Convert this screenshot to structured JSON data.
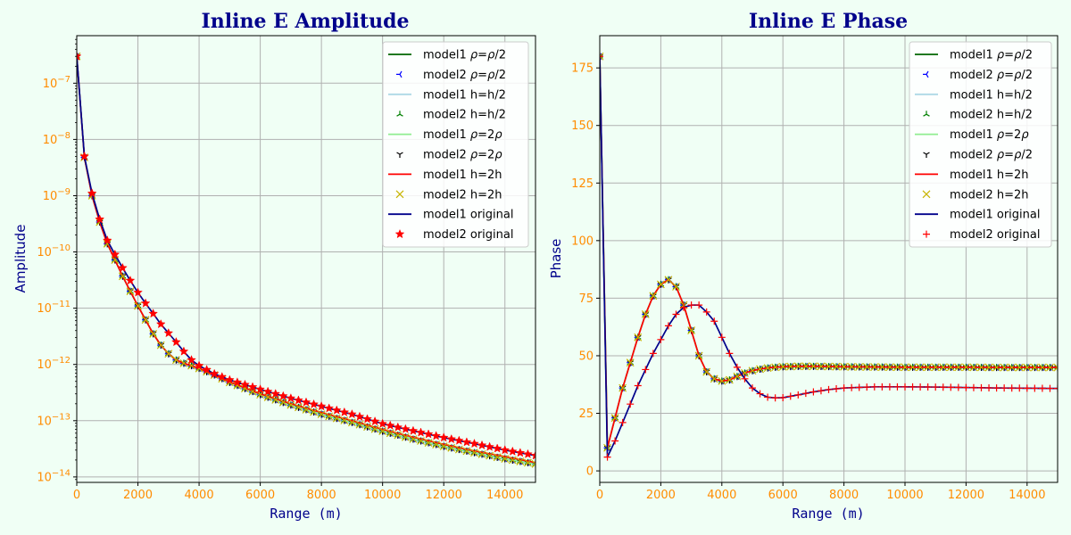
{
  "chart_data": [
    {
      "type": "line",
      "title": "Inline E Amplitude",
      "xlabel": "Range (m)",
      "ylabel": "Amplitude",
      "xlim": [
        0,
        15000
      ],
      "ylim": [
        8e-15,
        7e-07
      ],
      "yscale": "log",
      "x_ticks": [
        "0",
        "2000",
        "4000",
        "6000",
        "8000",
        "10000",
        "12000",
        "14000"
      ],
      "y_ticks": [
        "10^-14",
        "10^-13",
        "10^-12",
        "10^-11",
        "10^-10",
        "10^-9",
        "10^-8",
        "10^-7"
      ],
      "grid": true,
      "legend_position": "top-right",
      "series": [
        {
          "name": "model1 ρ=ρ/2",
          "style": "line",
          "color": "#006400",
          "group": "half_rho"
        },
        {
          "name": "model2 ρ=ρ/2",
          "style": "marker",
          "marker": "tri_left",
          "color": "#0000ff",
          "group": "half_rho"
        },
        {
          "name": "model1 h=h/2",
          "style": "line",
          "color": "#add8e6",
          "group": "half_rho"
        },
        {
          "name": "model2 h=h/2",
          "style": "marker",
          "marker": "tri_up",
          "color": "#008000",
          "group": "half_rho"
        },
        {
          "name": "model1 ρ=2ρ",
          "style": "line",
          "color": "#90ee90",
          "group": "half_rho"
        },
        {
          "name": "model2 ρ=2ρ",
          "style": "marker",
          "marker": "tri_down",
          "color": "#000000",
          "group": "half_rho"
        },
        {
          "name": "model1 h=2h",
          "style": "line",
          "color": "#ff0000",
          "group": "double_h"
        },
        {
          "name": "model2 h=2h",
          "style": "marker",
          "marker": "x",
          "color": "#c8b400",
          "group": "half_rho"
        },
        {
          "name": "model1 original",
          "style": "line",
          "color": "#00008b",
          "group": "original"
        },
        {
          "name": "model2 original",
          "style": "marker",
          "marker": "star",
          "color": "#ff0000",
          "group": "original"
        }
      ],
      "curves": {
        "original": {
          "x": [
            0,
            250,
            500,
            750,
            1000,
            1250,
            1500,
            1750,
            2000,
            2250,
            2500,
            2750,
            3000,
            3250,
            3500,
            3750,
            4000,
            4500,
            5000,
            6000,
            7000,
            8000,
            9000,
            10000,
            11000,
            12000,
            13000,
            14000,
            15000
          ],
          "y": [
            3e-07,
            5e-09,
            1.1e-09,
            3.8e-10,
            1.6e-10,
            9e-11,
            5.2e-11,
            3.1e-11,
            1.9e-11,
            1.22e-11,
            8e-12,
            5.2e-12,
            3.6e-12,
            2.5e-12,
            1.7e-12,
            1.2e-12,
            9.5e-13,
            6.8e-13,
            5.3e-13,
            3.6e-13,
            2.5e-13,
            1.8e-13,
            1.3e-13,
            8.8e-14,
            6.6e-14,
            5e-14,
            3.9e-14,
            3e-14,
            2.4e-14
          ]
        },
        "half_rho": {
          "x": [
            0,
            250,
            500,
            750,
            1000,
            1250,
            1500,
            1750,
            2000,
            2250,
            2500,
            2750,
            3000,
            3250,
            3500,
            3750,
            4000,
            4500,
            5000,
            6000,
            7000,
            8000,
            9000,
            10000,
            11000,
            12000,
            13000,
            14000,
            15000
          ],
          "y": [
            3e-07,
            4.8e-09,
            1e-09,
            3.4e-10,
            1.4e-10,
            7.2e-11,
            3.7e-11,
            2e-11,
            1.1e-11,
            6.2e-12,
            3.5e-12,
            2.2e-12,
            1.55e-12,
            1.2e-12,
            1.05e-12,
            9.5e-13,
            8.5e-13,
            6.5e-13,
            4.8e-13,
            2.9e-13,
            1.9e-13,
            1.3e-13,
            9.3e-14,
            6.5e-14,
            4.7e-14,
            3.5e-14,
            2.7e-14,
            2.1e-14,
            1.7e-14
          ]
        },
        "double_h": {
          "x": [
            0,
            250,
            500,
            750,
            1000,
            1250,
            1500,
            1750,
            2000,
            2250,
            2500,
            2750,
            3000,
            3250,
            3500,
            3750,
            4000,
            4500,
            5000,
            6000,
            7000,
            8000,
            9000,
            10000,
            11000,
            12000,
            13000,
            14000,
            15000
          ],
          "y": [
            3e-07,
            4.8e-09,
            1e-09,
            3.4e-10,
            1.4e-10,
            7.2e-11,
            3.7e-11,
            2e-11,
            1.1e-11,
            6.2e-12,
            3.5e-12,
            2.2e-12,
            1.55e-12,
            1.2e-12,
            1.05e-12,
            9.5e-13,
            8.5e-13,
            6.5e-13,
            4.9e-13,
            3e-13,
            2e-13,
            1.4e-13,
            1e-13,
            7e-14,
            5.1e-14,
            3.8e-14,
            2.9e-14,
            2.3e-14,
            1.8e-14
          ]
        }
      }
    },
    {
      "type": "line",
      "title": "Inline E Phase",
      "xlabel": "Range (m)",
      "ylabel": "Phase",
      "xlim": [
        0,
        15000
      ],
      "ylim": [
        -5,
        189
      ],
      "x_ticks": [
        "0",
        "2000",
        "4000",
        "6000",
        "8000",
        "10000",
        "12000",
        "14000"
      ],
      "y_ticks": [
        "0",
        "25",
        "50",
        "75",
        "100",
        "125",
        "150",
        "175"
      ],
      "grid": true,
      "legend_position": "top-right",
      "series": [
        {
          "name": "model1 ρ=ρ/2",
          "style": "line",
          "color": "#006400",
          "group": "shifted"
        },
        {
          "name": "model2 ρ=ρ/2",
          "style": "marker",
          "marker": "tri_left",
          "color": "#0000ff",
          "group": "shifted"
        },
        {
          "name": "model1 h=h/2",
          "style": "line",
          "color": "#add8e6",
          "group": "shifted"
        },
        {
          "name": "model2 h=h/2",
          "style": "marker",
          "marker": "tri_up",
          "color": "#008000",
          "group": "shifted"
        },
        {
          "name": "model1 ρ=2ρ",
          "style": "line",
          "color": "#90ee90",
          "group": "shifted"
        },
        {
          "name": "model2 ρ=ρ/2",
          "style": "marker",
          "marker": "tri_down",
          "color": "#000000",
          "group": "shifted"
        },
        {
          "name": "model1 h=2h",
          "style": "line",
          "color": "#ff0000",
          "group": "shifted"
        },
        {
          "name": "model2 h=2h",
          "style": "marker",
          "marker": "x",
          "color": "#c8b400",
          "group": "shifted"
        },
        {
          "name": "model1 original",
          "style": "line",
          "color": "#00008b",
          "group": "original"
        },
        {
          "name": "model2 original",
          "style": "marker",
          "marker": "plus",
          "color": "#ff0000",
          "group": "original"
        }
      ],
      "curves": {
        "original": {
          "x": [
            0,
            250,
            500,
            750,
            1000,
            1250,
            1500,
            1750,
            2000,
            2250,
            2500,
            2750,
            3000,
            3250,
            3500,
            3750,
            4000,
            4250,
            4500,
            4750,
            5000,
            5250,
            5500,
            5750,
            6000,
            6500,
            7000,
            7500,
            8000,
            9000,
            10000,
            11000,
            12000,
            13000,
            14000,
            15000
          ],
          "y": [
            180,
            6,
            13,
            21,
            29,
            37,
            44,
            51,
            57,
            63,
            68,
            71,
            72,
            72,
            69,
            65,
            58,
            51,
            45,
            40,
            36,
            33.5,
            32,
            31.7,
            31.8,
            33,
            34.3,
            35.3,
            36,
            36.5,
            36.5,
            36.4,
            36.2,
            36,
            35.9,
            35.8
          ]
        },
        "shifted": {
          "x": [
            0,
            250,
            500,
            750,
            1000,
            1250,
            1500,
            1750,
            2000,
            2250,
            2500,
            2750,
            3000,
            3250,
            3500,
            3750,
            4000,
            4250,
            4500,
            4750,
            5000,
            5250,
            5500,
            5750,
            6000,
            6500,
            7000,
            7500,
            8000,
            9000,
            10000,
            11000,
            12000,
            13000,
            14000,
            15000
          ],
          "y": [
            180,
            10,
            23,
            36,
            47,
            58,
            68,
            76,
            81,
            83,
            80,
            72,
            61,
            50,
            43,
            40,
            39,
            39.5,
            41,
            42.5,
            43.5,
            44.2,
            44.7,
            45,
            45.2,
            45.4,
            45.4,
            45.3,
            45.2,
            45.1,
            45,
            45,
            45,
            44.9,
            44.9,
            44.9
          ]
        }
      }
    }
  ]
}
